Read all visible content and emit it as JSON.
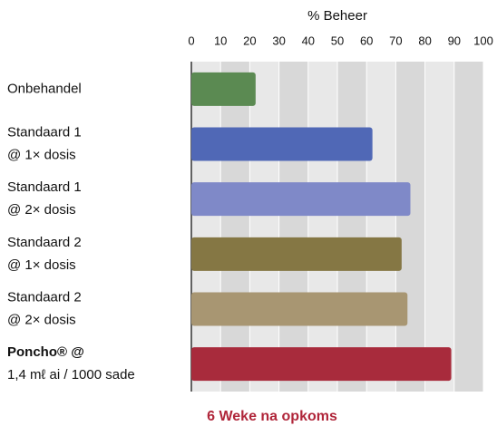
{
  "chart_data": {
    "type": "bar",
    "orientation": "horizontal",
    "xlabel": "% Beheer",
    "caption": "6 Weke na opkoms",
    "categories": [
      [
        "Onbehandel"
      ],
      [
        "Standaard 1",
        "@ 1× dosis"
      ],
      [
        "Standaard 1",
        "@ 2× dosis"
      ],
      [
        "Standaard 2",
        "@ 1× dosis"
      ],
      [
        "Standaard 2",
        "@ 2× dosis"
      ],
      [
        "Poncho® @",
        "1,4 mℓ ai / 1000 sade"
      ]
    ],
    "values": [
      22,
      62,
      75,
      72,
      74,
      89
    ],
    "colors": [
      "#5b8a52",
      "#5068b6",
      "#7f89c8",
      "#857744",
      "#a89672",
      "#a82b3c"
    ],
    "xlim": [
      0,
      100
    ],
    "xticks": [
      0,
      10,
      20,
      30,
      40,
      50,
      60,
      70,
      80,
      90,
      100
    ],
    "grid": true
  }
}
